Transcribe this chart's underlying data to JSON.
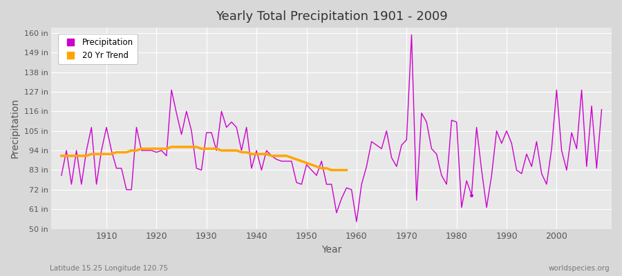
{
  "title": "Yearly Total Precipitation 1901 - 2009",
  "xlabel": "Year",
  "ylabel": "Precipitation",
  "subtitle": "Latitude 15.25 Longitude 120.75",
  "watermark": "worldspecies.org",
  "ylim": [
    50,
    163
  ],
  "yticks": [
    50,
    61,
    72,
    83,
    94,
    105,
    116,
    127,
    138,
    149,
    160
  ],
  "ytick_labels": [
    "50 in",
    "61 in",
    "72 in",
    "83 in",
    "94 in",
    "105 in",
    "116 in",
    "127 in",
    "138 in",
    "149 in",
    "160 in"
  ],
  "fig_bg_color": "#d8d8d8",
  "plot_bg_color": "#e8e8e8",
  "grid_color": "#ffffff",
  "precip_color": "#cc00cc",
  "trend_color": "#ffa500",
  "years": [
    1901,
    1902,
    1903,
    1904,
    1905,
    1906,
    1907,
    1908,
    1909,
    1910,
    1911,
    1912,
    1913,
    1914,
    1915,
    1916,
    1917,
    1918,
    1919,
    1920,
    1921,
    1922,
    1923,
    1924,
    1925,
    1926,
    1927,
    1928,
    1929,
    1930,
    1931,
    1932,
    1933,
    1934,
    1935,
    1936,
    1937,
    1938,
    1939,
    1940,
    1941,
    1942,
    1943,
    1944,
    1945,
    1946,
    1947,
    1948,
    1949,
    1950,
    1951,
    1952,
    1953,
    1954,
    1955,
    1956,
    1957,
    1958,
    1959,
    1960,
    1961,
    1962,
    1963,
    1964,
    1965,
    1966,
    1967,
    1968,
    1969,
    1970,
    1971,
    1972,
    1973,
    1974,
    1975,
    1976,
    1977,
    1978,
    1979,
    1980,
    1981,
    1982,
    1983,
    1984,
    1985,
    1986,
    1987,
    1988,
    1989,
    1990,
    1991,
    1992,
    1993,
    1994,
    1995,
    1996,
    1997,
    1998,
    1999,
    2000,
    2001,
    2002,
    2003,
    2004,
    2005,
    2006,
    2007,
    2008,
    2009
  ],
  "precip": [
    80,
    94,
    75,
    94,
    75,
    94,
    107,
    75,
    94,
    107,
    94,
    84,
    84,
    72,
    72,
    107,
    94,
    94,
    94,
    93,
    94,
    91,
    128,
    115,
    103,
    116,
    105,
    84,
    83,
    104,
    104,
    94,
    116,
    107,
    110,
    107,
    94,
    107,
    84,
    94,
    83,
    94,
    91,
    89,
    88,
    88,
    88,
    76,
    75,
    86,
    83,
    80,
    88,
    75,
    75,
    59,
    67,
    73,
    72,
    54,
    75,
    85,
    99,
    97,
    95,
    105,
    90,
    85,
    97,
    100,
    159,
    66,
    115,
    110,
    95,
    92,
    80,
    75,
    111,
    110,
    62,
    77,
    69,
    107,
    83,
    62,
    80,
    105,
    98,
    105,
    98,
    83,
    81,
    92,
    85,
    99,
    81,
    75,
    95,
    128,
    94,
    83,
    104,
    95,
    128,
    85,
    119,
    84,
    117
  ],
  "trend_years": [
    1901,
    1902,
    1903,
    1904,
    1905,
    1906,
    1907,
    1908,
    1909,
    1910,
    1911,
    1912,
    1913,
    1914,
    1915,
    1916,
    1917,
    1918,
    1919,
    1920,
    1921,
    1922,
    1923,
    1924,
    1925,
    1926,
    1927,
    1928,
    1929,
    1930,
    1931,
    1932,
    1933,
    1934,
    1935,
    1936,
    1937,
    1938,
    1939,
    1940,
    1941,
    1942,
    1943,
    1944,
    1945,
    1946,
    1947,
    1948,
    1949,
    1950,
    1951,
    1952,
    1953,
    1954,
    1955,
    1956,
    1957,
    1958
  ],
  "trend": [
    91,
    91,
    91,
    91,
    91,
    91,
    92,
    92,
    92,
    92,
    92,
    93,
    93,
    93,
    94,
    94,
    95,
    95,
    95,
    95,
    95,
    95,
    96,
    96,
    96,
    96,
    96,
    96,
    95,
    95,
    95,
    95,
    94,
    94,
    94,
    94,
    93,
    93,
    92,
    92,
    92,
    92,
    91,
    91,
    91,
    91,
    90,
    89,
    88,
    87,
    86,
    85,
    84,
    84,
    83,
    83,
    83,
    83
  ],
  "isolated_point_year": 1983,
  "isolated_point_val": 69,
  "xtick_positions": [
    1910,
    1920,
    1930,
    1940,
    1950,
    1960,
    1970,
    1980,
    1990,
    2000
  ]
}
